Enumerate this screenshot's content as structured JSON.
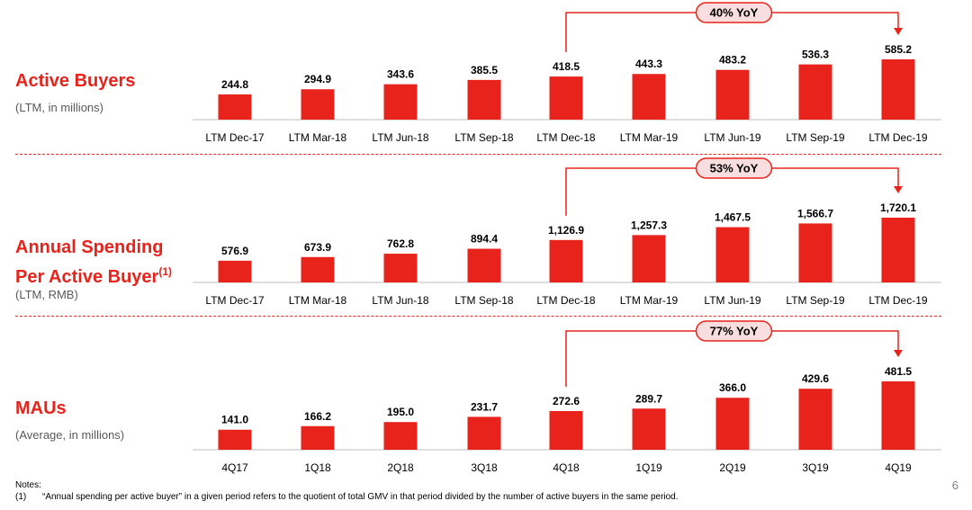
{
  "colors": {
    "bar": "#e8231c",
    "axis": "#bfbfbf",
    "text": "#000000"
  },
  "chart_data": [
    {
      "type": "bar",
      "id": "active-buyers",
      "title": "Active Buyers",
      "subtitle": "(LTM, in millions)",
      "categories": [
        "LTM Dec-17",
        "LTM Mar-18",
        "LTM Jun-18",
        "LTM Sep-18",
        "LTM Dec-18",
        "LTM Mar-19",
        "LTM Jun-19",
        "LTM Sep-19",
        "LTM Dec-19"
      ],
      "values": [
        244.8,
        294.9,
        343.6,
        385.5,
        418.5,
        443.3,
        483.2,
        536.3,
        585.2
      ],
      "labels": [
        "244.8",
        "294.9",
        "343.6",
        "385.5",
        "418.5",
        "443.3",
        "483.2",
        "536.3",
        "585.2"
      ],
      "yoy": {
        "label": "40% YoY",
        "from_index": 4,
        "to_index": 8
      },
      "ylim": [
        0,
        585.2
      ]
    },
    {
      "type": "bar",
      "id": "annual-spending",
      "title": "Annual Spending",
      "title_line2": "Per Active Buyer",
      "title_sup": "(1)",
      "subtitle": "(LTM, RMB)",
      "categories": [
        "LTM Dec-17",
        "LTM Mar-18",
        "LTM Jun-18",
        "LTM Sep-18",
        "LTM Dec-18",
        "LTM Mar-19",
        "LTM Jun-19",
        "LTM Sep-19",
        "LTM Dec-19"
      ],
      "values": [
        576.9,
        673.9,
        762.8,
        894.4,
        1126.9,
        1257.3,
        1467.5,
        1566.7,
        1720.1
      ],
      "labels": [
        "576.9",
        "673.9",
        "762.8",
        "894.4",
        "1,126.9",
        "1,257.3",
        "1,467.5",
        "1,566.7",
        "1,720.1"
      ],
      "yoy": {
        "label": "53% YoY",
        "from_index": 4,
        "to_index": 8
      },
      "ylim": [
        0,
        1720.1
      ]
    },
    {
      "type": "bar",
      "id": "maus",
      "title": "MAUs",
      "subtitle": "(Average, in millions)",
      "categories": [
        "4Q17",
        "1Q18",
        "2Q18",
        "3Q18",
        "4Q18",
        "1Q19",
        "2Q19",
        "3Q19",
        "4Q19"
      ],
      "values": [
        141.0,
        166.2,
        195.0,
        231.7,
        272.6,
        289.7,
        366.0,
        429.6,
        481.5
      ],
      "labels": [
        "141.0",
        "166.2",
        "195.0",
        "231.7",
        "272.6",
        "289.7",
        "366.0",
        "429.6",
        "481.5"
      ],
      "yoy": {
        "label": "77% YoY",
        "from_index": 4,
        "to_index": 8
      },
      "ylim": [
        0,
        481.5
      ]
    }
  ],
  "notes": {
    "heading": "Notes:",
    "items": [
      {
        "marker": "(1)",
        "text": "“Annual spending per active buyer” in a given period refers to the quotient of total GMV in that period divided by the number of active buyers in the same period."
      }
    ]
  },
  "page_number": "6"
}
